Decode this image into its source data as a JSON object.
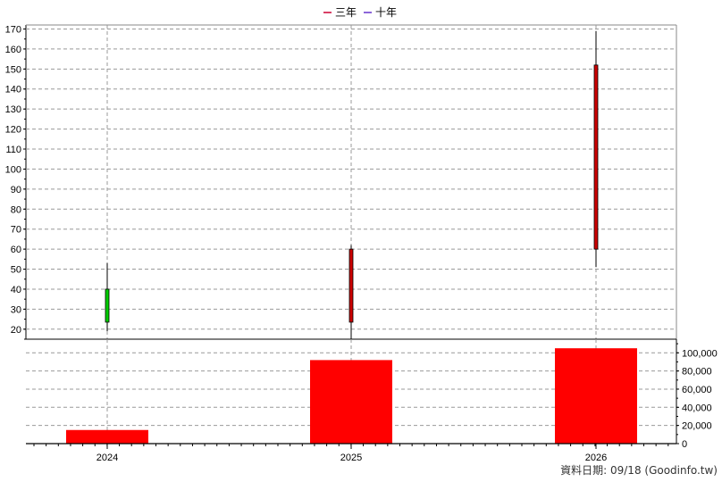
{
  "legend": [
    {
      "label": "三年",
      "color": "#cc0033"
    },
    {
      "label": "十年",
      "color": "#6633cc"
    }
  ],
  "footer": {
    "text": "資料日期: 09/18  (Goodinfo.tw)"
  },
  "chart_data": [
    {
      "type": "candlestick",
      "categories": [
        "2024",
        "2025",
        "2026"
      ],
      "candles": [
        {
          "x": "2024",
          "open": 23.5,
          "close": 40,
          "low": 19,
          "high": 53,
          "color": "#00cc00"
        },
        {
          "x": "2025",
          "open": 60,
          "close": 23.5,
          "low": 14,
          "high": 62,
          "color": "#cc0000"
        },
        {
          "x": "2026",
          "open": 152,
          "close": 60,
          "low": 51,
          "high": 169,
          "color": "#cc0000"
        }
      ],
      "ylim": [
        15,
        172
      ],
      "yticks": [
        20,
        30,
        40,
        50,
        60,
        70,
        80,
        90,
        100,
        110,
        120,
        130,
        140,
        150,
        160,
        170
      ],
      "grid": true,
      "legend_position": "top-center"
    },
    {
      "type": "bar",
      "categories": [
        "2024",
        "2025",
        "2026"
      ],
      "values": [
        15000,
        92000,
        105000
      ],
      "bar_color": "#ff0000",
      "ylim": [
        0,
        115000
      ],
      "yticks": [
        0,
        20000,
        40000,
        60000,
        80000,
        100000
      ],
      "ytick_labels": [
        "0",
        "20,000",
        "40,000",
        "60,000",
        "80,000",
        "100,000"
      ],
      "grid": true
    }
  ]
}
